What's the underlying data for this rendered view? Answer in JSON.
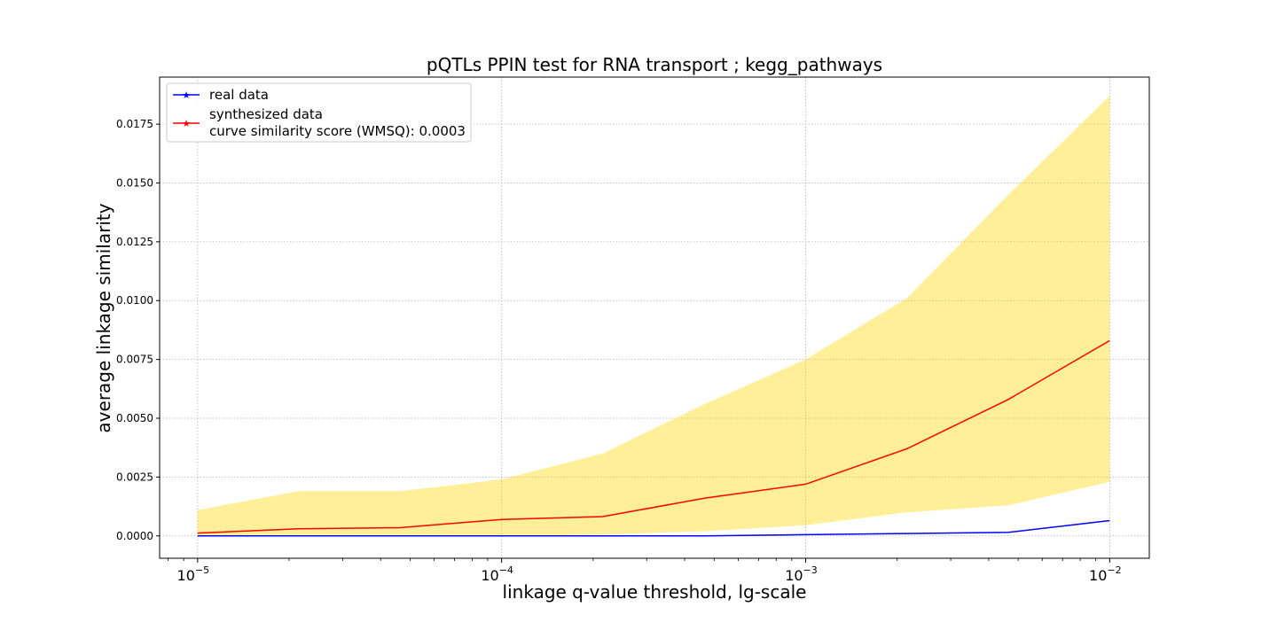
{
  "chart_data": {
    "type": "line",
    "title": "pQTLs PPIN test for RNA transport ; kegg_pathways",
    "xlabel": "linkage q-value threshold, lg-scale",
    "ylabel": "average linkage similarity",
    "x_scale": "log",
    "xlim": [
      7.5e-06,
      0.0135
    ],
    "ylim": [
      -0.00095,
      0.0195
    ],
    "grid": true,
    "legend_position": "top-left",
    "x": [
      1e-05,
      2.15e-05,
      4.64e-05,
      0.0001,
      0.000215,
      0.000464,
      0.001,
      0.00215,
      0.00464,
      0.01
    ],
    "x_tick_values": [
      1e-05,
      0.0001,
      0.001,
      0.01
    ],
    "x_ticks": [
      {
        "base": "10",
        "exp": "−5"
      },
      {
        "base": "10",
        "exp": "−4"
      },
      {
        "base": "10",
        "exp": "−3"
      },
      {
        "base": "10",
        "exp": "−2"
      }
    ],
    "y_tick_values": [
      0,
      0.0025,
      0.005,
      0.0075,
      0.01,
      0.0125,
      0.015,
      0.0175
    ],
    "y_ticks": [
      "0.0000",
      "0.0025",
      "0.0050",
      "0.0075",
      "0.0100",
      "0.0125",
      "0.0150",
      "0.0175"
    ],
    "series": [
      {
        "name": "real data",
        "color": "#0000ff",
        "values": [
          0.0,
          0.0,
          0.0,
          0.0,
          0.0,
          0.0,
          5e-05,
          0.0001,
          0.00015,
          0.00065
        ]
      },
      {
        "name": "synthesized data",
        "name_line2": "curve similarity score (WMSQ): 0.0003",
        "color": "#ff0000",
        "values": [
          0.00012,
          0.0003,
          0.00035,
          0.0007,
          0.00082,
          0.0016,
          0.0022,
          0.0037,
          0.0058,
          0.0083
        ]
      }
    ],
    "band": {
      "color": "#ffd700",
      "lower": [
        0.0,
        0.0,
        0.0,
        0.0,
        5e-05,
        0.0002,
        0.00045,
        0.001,
        0.0013,
        0.0023
      ],
      "upper": [
        0.0011,
        0.0019,
        0.0019,
        0.0024,
        0.0035,
        0.0056,
        0.0075,
        0.0101,
        0.0145,
        0.0187
      ]
    }
  }
}
